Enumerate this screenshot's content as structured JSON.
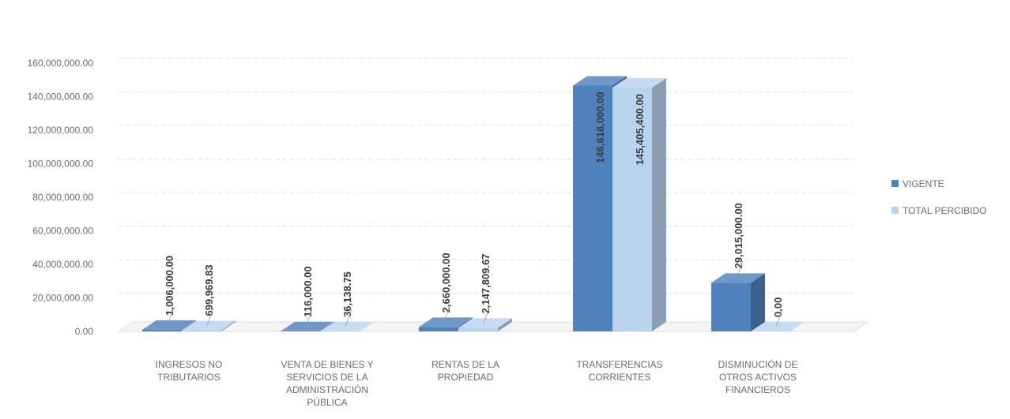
{
  "chart_data": {
    "type": "bar",
    "style": "3d-clustered-column",
    "categories": [
      [
        "INGRESOS NO",
        "TRIBUTARIOS"
      ],
      [
        "VENTA DE BIENES Y",
        "SERVICIOS DE LA",
        "ADMINISTRACIÓN",
        "PÚBLICA"
      ],
      [
        "RENTAS DE LA",
        "PROPIEDAD"
      ],
      [
        "TRANSFERENCIAS",
        "CORRIENTES"
      ],
      [
        "DISMINUCIÓN DE",
        "OTROS ACTIVOS",
        "FINANCIEROS"
      ]
    ],
    "series": [
      {
        "name": "VIGENTE",
        "color": "#4f81bd",
        "values": [
          1006000.0,
          116000.0,
          2660000.0,
          146616000.0,
          29015000.0
        ],
        "labels": [
          "1,006,000.00",
          "116,000.00",
          "2,660,000.00",
          "146,616,000.00",
          "29,015,000.00"
        ]
      },
      {
        "name": "TOTAL PERCIBIDO",
        "color": "#b9d3ee",
        "values": [
          699969.83,
          36138.75,
          2147809.67,
          145405400.0,
          0.0
        ],
        "labels": [
          "699,969.83",
          "36,138.75",
          "2,147,809.67",
          "145,405,400.00",
          "0.00"
        ]
      }
    ],
    "yticks": [
      "0.00",
      "20,000,000.00",
      "40,000,000.00",
      "60,000,000.00",
      "80,000,000.00",
      "100,000,000.00",
      "120,000,000.00",
      "140,000,000.00",
      "160,000,000.00"
    ],
    "ylim": [
      0,
      160000000
    ],
    "grid": true,
    "legend_position": "right"
  }
}
